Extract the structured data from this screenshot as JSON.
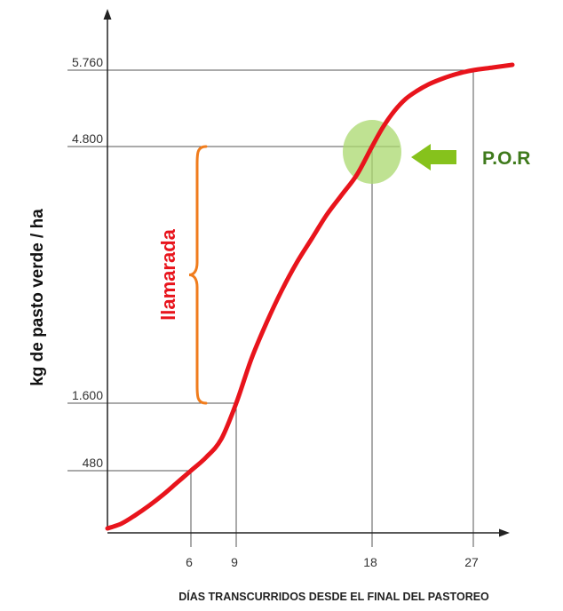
{
  "chart_data": {
    "type": "line",
    "xlabel": "DÍAS TRANSCURRIDOS DESDE EL FINAL DEL PASTOREO",
    "ylabel": "kg de pasto verde / ha",
    "x_ticks": [
      "6",
      "9",
      "18",
      "27"
    ],
    "y_ticks": [
      "480",
      "1.600",
      "4.800",
      "5.760"
    ],
    "x_tick_values": [
      6,
      9,
      18,
      27
    ],
    "y_tick_values": [
      480,
      1600,
      4800,
      5760
    ],
    "xlim": [
      0,
      29
    ],
    "grid": false,
    "series": [
      {
        "color": "#e8141c",
        "points": [
          [
            0,
            0
          ],
          [
            1,
            40
          ],
          [
            2,
            110
          ],
          [
            3,
            190
          ],
          [
            4,
            280
          ],
          [
            5,
            380
          ],
          [
            6,
            480
          ],
          [
            7,
            700
          ],
          [
            8,
            1000
          ],
          [
            9,
            1600
          ],
          [
            10,
            2150
          ],
          [
            11,
            2600
          ],
          [
            12,
            3000
          ],
          [
            13,
            3350
          ],
          [
            14,
            3650
          ],
          [
            15,
            3950
          ],
          [
            16,
            4200
          ],
          [
            17,
            4450
          ],
          [
            18,
            4800
          ],
          [
            19,
            5050
          ],
          [
            20,
            5250
          ],
          [
            21,
            5400
          ],
          [
            22,
            5500
          ],
          [
            23,
            5580
          ],
          [
            24,
            5640
          ],
          [
            25,
            5690
          ],
          [
            26,
            5730
          ],
          [
            27,
            5760
          ],
          [
            28,
            5790
          ],
          [
            29,
            5820
          ]
        ]
      }
    ],
    "annotations": [
      {
        "text": "llamarada",
        "color": "#e8141c",
        "brace_color": "#f07c1c",
        "from_y": 1600,
        "to_y": 4800
      },
      {
        "text": "P.O.R",
        "color": "#3f7a1c",
        "arrow_color": "#86c21c",
        "highlight_color": "#a9d86e",
        "x": 18,
        "y": 4800
      }
    ]
  }
}
